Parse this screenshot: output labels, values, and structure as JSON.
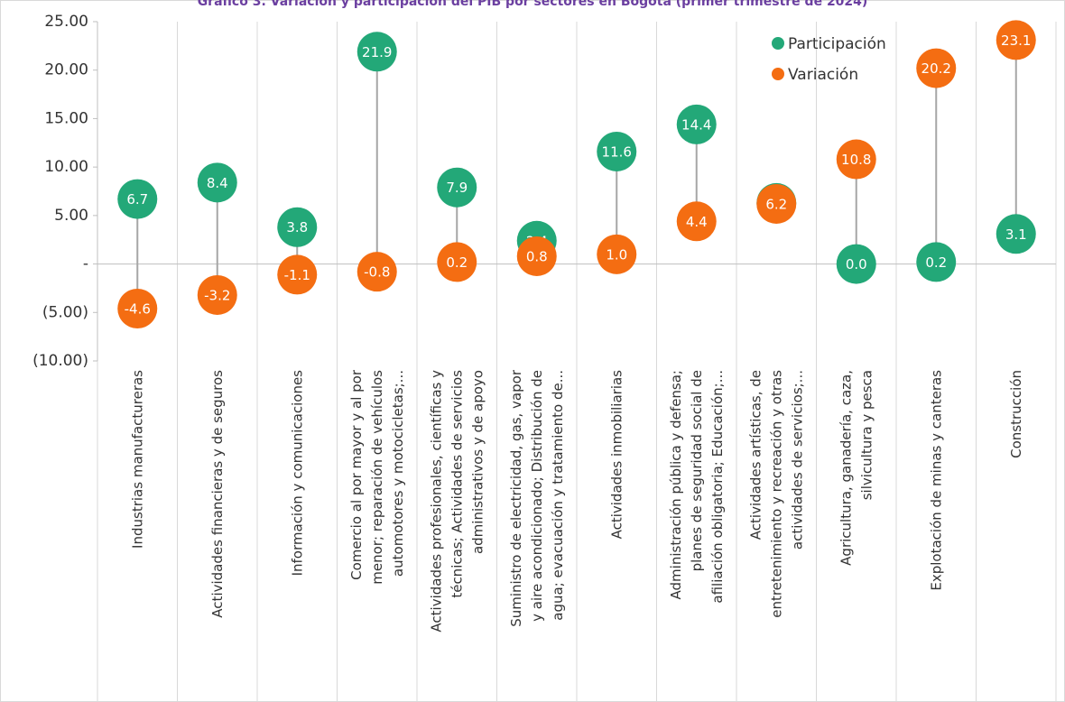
{
  "chart_data": {
    "type": "dot",
    "title": "Gráfico 3. Variación y participación del PIB por sectores en Bogotá (primer trimestre de 2024)",
    "categories": [
      "Industrias manufactureras",
      "Actividades financieras y de seguros",
      "Información y comunicaciones",
      "Comercio al por mayor y al por\nmenor; reparación de vehículos\nautomotores y motocicletas;...",
      "Actividades profesionales, científicas y\ntécnicas; Actividades de servicios\nadministrativos y de apoyo",
      "Suministro de electricidad, gas, vapor\ny aire acondicionado; Distribución de\nagua; evacuación y tratamiento de...",
      "Actividades inmobiliarias",
      "Administración pública y defensa;\nplanes de seguridad social de\nafiliación obligatoria; Educación;...",
      "Actividades artísticas, de\nentretenimiento y recreación y otras\nactividades de servicios;...",
      "Agricultura, ganadería, caza,\nsilvicultura y pesca",
      "Explotación de minas y canteras",
      "Construcción"
    ],
    "series": [
      {
        "name": "Participación",
        "color": "#23a878",
        "values": [
          6.7,
          8.4,
          3.8,
          21.9,
          7.9,
          2.4,
          11.6,
          14.4,
          6.3,
          0.0,
          0.2,
          3.1
        ],
        "value_labels": [
          "6.7",
          "8.4",
          "3.8",
          "21.9",
          "7.9",
          "2.4",
          "11.6",
          "14.4",
          "6.3",
          "0.0",
          "0.2",
          "3.1"
        ]
      },
      {
        "name": "Variación",
        "color": "#f46d12",
        "values": [
          -4.6,
          -3.2,
          -1.1,
          -0.8,
          0.2,
          0.8,
          1.0,
          4.4,
          6.2,
          10.8,
          20.2,
          23.1
        ],
        "value_labels": [
          "-4.6",
          "-3.2",
          "-1.1",
          "-0.8",
          "0.2",
          "0.8",
          "1.0",
          "4.4",
          "6.2",
          "10.8",
          "20.2",
          "23.1"
        ]
      }
    ],
    "ylim": [
      -10,
      25
    ],
    "yticks": [
      {
        "value": -10,
        "label": "(10.00)"
      },
      {
        "value": -5,
        "label": "(5.00)"
      },
      {
        "value": 0,
        "label": "-"
      },
      {
        "value": 5,
        "label": "5.00"
      },
      {
        "value": 10,
        "label": "10.00"
      },
      {
        "value": 15,
        "label": "15.00"
      },
      {
        "value": 20,
        "label": "20.00"
      },
      {
        "value": 25,
        "label": "25.00"
      }
    ],
    "legend": "upper right"
  }
}
